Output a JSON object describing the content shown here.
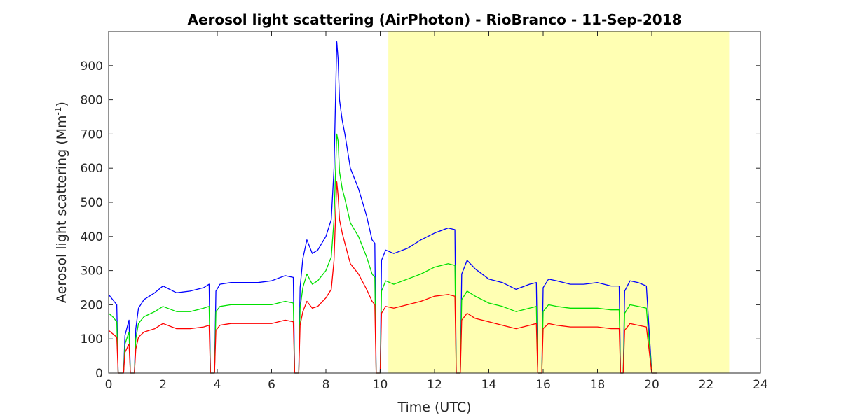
{
  "chart_data": {
    "type": "line",
    "title": "Aerosol light scattering (AirPhoton) - RioBranco - 11-Sep-2018",
    "xlabel": "Time (UTC)",
    "ylabel_main": "Aerosol light scattering (Mm",
    "ylabel_sup": "-1",
    "ylabel_close": ")",
    "xlim": [
      0,
      24
    ],
    "ylim": [
      0,
      1000
    ],
    "xticks": [
      0,
      2,
      4,
      6,
      8,
      10,
      12,
      14,
      16,
      18,
      20,
      22,
      24
    ],
    "yticks": [
      0,
      100,
      200,
      300,
      400,
      500,
      600,
      700,
      800,
      900
    ],
    "grid": false,
    "shaded_region": {
      "x_start": 10.3,
      "x_end": 22.85,
      "color": "#ffffb3"
    },
    "x": [
      0.0,
      0.15,
      0.3,
      0.35,
      0.55,
      0.6,
      0.75,
      0.8,
      0.95,
      1.0,
      1.1,
      1.3,
      1.7,
      2.0,
      2.5,
      3.0,
      3.5,
      3.7,
      3.75,
      3.9,
      3.95,
      4.1,
      4.5,
      5.0,
      5.5,
      6.0,
      6.5,
      6.8,
      6.85,
      7.0,
      7.05,
      7.15,
      7.3,
      7.5,
      7.7,
      8.0,
      8.2,
      8.3,
      8.4,
      8.45,
      8.5,
      8.6,
      8.7,
      8.9,
      9.2,
      9.5,
      9.7,
      9.8,
      9.85,
      10.0,
      10.05,
      10.2,
      10.5,
      11.0,
      11.5,
      12.0,
      12.5,
      12.75,
      12.8,
      12.95,
      13.0,
      13.2,
      13.5,
      14.0,
      14.5,
      15.0,
      15.5,
      15.75,
      15.8,
      15.95,
      16.0,
      16.2,
      16.5,
      17.0,
      17.5,
      18.0,
      18.5,
      18.8,
      18.85,
      18.95,
      19.0,
      19.2,
      19.5,
      19.8,
      20.0,
      20.05,
      20.2
    ],
    "series": [
      {
        "color": "#0000ff",
        "values": [
          230,
          215,
          200,
          0,
          0,
          110,
          155,
          0,
          0,
          130,
          190,
          215,
          235,
          255,
          235,
          240,
          250,
          260,
          0,
          0,
          240,
          260,
          265,
          265,
          265,
          270,
          285,
          280,
          0,
          0,
          250,
          335,
          390,
          350,
          360,
          400,
          450,
          600,
          970,
          920,
          800,
          740,
          700,
          600,
          540,
          460,
          390,
          380,
          0,
          0,
          330,
          360,
          350,
          365,
          390,
          410,
          425,
          420,
          0,
          0,
          290,
          330,
          305,
          275,
          265,
          245,
          260,
          265,
          0,
          0,
          250,
          275,
          270,
          260,
          260,
          265,
          255,
          255,
          0,
          0,
          240,
          270,
          265,
          255,
          0,
          0,
          0
        ]
      },
      {
        "color": "#00e000",
        "values": [
          175,
          165,
          150,
          0,
          0,
          85,
          120,
          0,
          0,
          100,
          145,
          165,
          180,
          195,
          180,
          180,
          190,
          195,
          0,
          0,
          180,
          195,
          200,
          200,
          200,
          200,
          210,
          205,
          0,
          0,
          190,
          250,
          290,
          260,
          270,
          300,
          340,
          450,
          700,
          680,
          590,
          540,
          510,
          440,
          400,
          340,
          290,
          280,
          0,
          0,
          240,
          270,
          260,
          275,
          290,
          310,
          320,
          315,
          0,
          0,
          215,
          240,
          225,
          205,
          195,
          180,
          190,
          195,
          0,
          0,
          180,
          200,
          195,
          190,
          190,
          190,
          185,
          185,
          0,
          0,
          175,
          200,
          195,
          190,
          0,
          0,
          0
        ]
      },
      {
        "color": "#ff0000",
        "values": [
          125,
          115,
          105,
          0,
          0,
          60,
          85,
          0,
          0,
          70,
          105,
          120,
          130,
          145,
          130,
          130,
          135,
          140,
          0,
          0,
          125,
          140,
          145,
          145,
          145,
          145,
          155,
          150,
          0,
          0,
          140,
          180,
          210,
          190,
          195,
          220,
          245,
          330,
          560,
          520,
          450,
          410,
          380,
          320,
          290,
          245,
          210,
          200,
          0,
          0,
          175,
          195,
          190,
          200,
          210,
          225,
          230,
          225,
          0,
          0,
          155,
          175,
          160,
          150,
          140,
          130,
          140,
          145,
          0,
          0,
          130,
          145,
          140,
          135,
          135,
          135,
          130,
          130,
          0,
          0,
          125,
          145,
          140,
          135,
          0,
          0,
          0
        ]
      }
    ]
  }
}
